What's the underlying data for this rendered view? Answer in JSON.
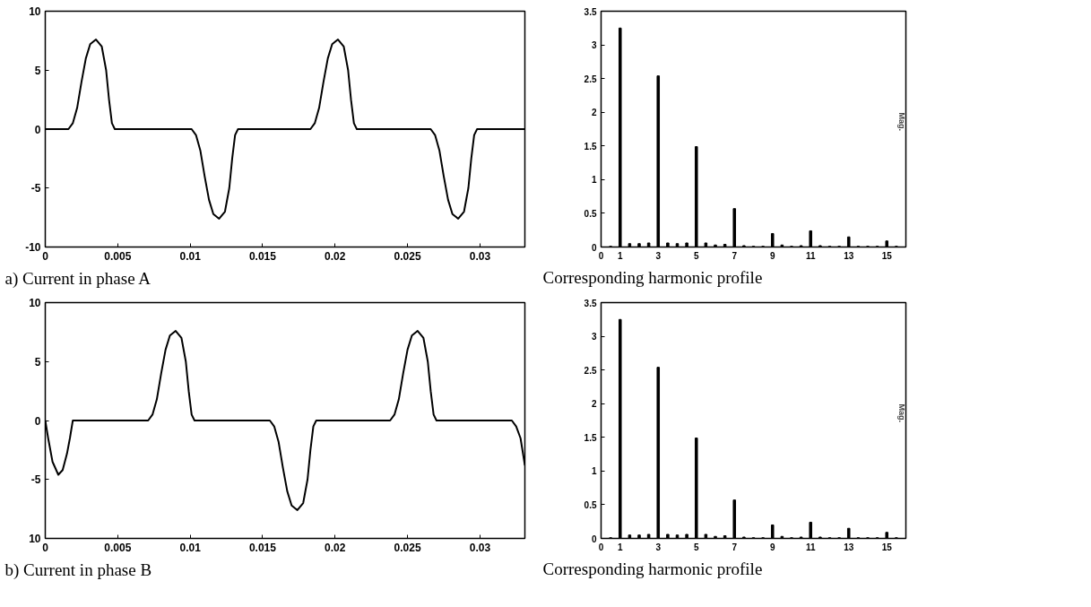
{
  "chart_data": [
    {
      "type": "line",
      "title": "a) Current in phase A",
      "x": [
        0,
        0.0016,
        0.0019,
        0.0022,
        0.0025,
        0.0028,
        0.0031,
        0.0035,
        0.0039,
        0.0042,
        0.0044,
        0.0046,
        0.0048,
        0.0101,
        0.0104,
        0.0107,
        0.011,
        0.0113,
        0.0116,
        0.012,
        0.0124,
        0.0127,
        0.0129,
        0.0131,
        0.0133,
        0.0183,
        0.0186,
        0.0189,
        0.0192,
        0.0195,
        0.0198,
        0.0202,
        0.0206,
        0.0209,
        0.0211,
        0.0213,
        0.0215,
        0.0266,
        0.0269,
        0.0272,
        0.0275,
        0.0278,
        0.0281,
        0.0285,
        0.0289,
        0.0292,
        0.0294,
        0.0296,
        0.0298,
        0.0331
      ],
      "series": [
        {
          "color": "#000000",
          "values": [
            0,
            0,
            0.5,
            1.8,
            4,
            6,
            7.2,
            7.6,
            7,
            5,
            2.5,
            0.5,
            0,
            0,
            -0.5,
            -1.8,
            -4,
            -6,
            -7.2,
            -7.6,
            -7,
            -5,
            -2.5,
            -0.5,
            0,
            0,
            0.5,
            1.8,
            4,
            6,
            7.2,
            7.6,
            7,
            5,
            2.5,
            0.5,
            0,
            0,
            -0.5,
            -1.8,
            -4,
            -6,
            -7.2,
            -7.6,
            -7,
            -5,
            -2.5,
            -0.5,
            0,
            0
          ]
        }
      ],
      "xlim": [
        0,
        0.0331
      ],
      "ylim": [
        -10,
        10
      ],
      "xticks": [
        0,
        0.005,
        0.01,
        0.015,
        0.02,
        0.025,
        0.03
      ],
      "yticks": [
        -10,
        -5,
        0,
        5,
        10
      ],
      "line_style": "solid",
      "marker": "none",
      "grid": false
    },
    {
      "type": "bar",
      "title": "Corresponding harmonic profile",
      "annotations": [
        "Mag."
      ],
      "x": [
        0.5,
        1,
        1.5,
        2,
        2.5,
        3,
        3.5,
        4,
        4.5,
        5,
        5.5,
        6,
        6.5,
        7,
        7.5,
        8,
        8.5,
        9,
        9.5,
        10,
        10.5,
        11,
        11.5,
        12,
        12.5,
        13,
        13.5,
        14,
        14.5,
        15,
        15.5
      ],
      "series": [
        {
          "color": "#000000",
          "values": [
            0.01,
            3.25,
            0.05,
            0.05,
            0.06,
            2.54,
            0.06,
            0.05,
            0.06,
            1.49,
            0.06,
            0.03,
            0.04,
            0.57,
            0.02,
            0.01,
            0.01,
            0.2,
            0.03,
            0.01,
            0.02,
            0.24,
            0.02,
            0.01,
            0.01,
            0.15,
            0.01,
            0.01,
            0.01,
            0.09,
            0.01
          ]
        }
      ],
      "xlim": [
        0,
        16
      ],
      "ylim": [
        0,
        3.5
      ],
      "xticks": [
        0,
        1,
        3,
        5,
        7,
        9,
        11,
        13,
        15
      ],
      "yticks": [
        0,
        0.5,
        1,
        1.5,
        2,
        2.5,
        3,
        3.5
      ],
      "grid": false
    },
    {
      "type": "line",
      "title": "b) Current in phase B",
      "x": [
        0,
        0.0002,
        0.0005,
        0.0009,
        0.0012,
        0.0015,
        0.0017,
        0.0019,
        0.0071,
        0.0074,
        0.0077,
        0.008,
        0.0083,
        0.0086,
        0.009,
        0.0094,
        0.0097,
        0.0099,
        0.0101,
        0.0103,
        0.0155,
        0.0158,
        0.0161,
        0.0164,
        0.0167,
        0.017,
        0.0174,
        0.0178,
        0.0181,
        0.0183,
        0.0185,
        0.0187,
        0.0238,
        0.0241,
        0.0244,
        0.0247,
        0.025,
        0.0253,
        0.0257,
        0.0261,
        0.0264,
        0.0266,
        0.0268,
        0.027,
        0.0322,
        0.0325,
        0.0328,
        0.0331
      ],
      "series": [
        {
          "color": "#000000",
          "values": [
            0,
            -1.5,
            -3.5,
            -4.6,
            -4.2,
            -2.8,
            -1.5,
            0,
            0,
            0.5,
            1.8,
            4,
            6,
            7.2,
            7.6,
            7,
            5,
            2.5,
            0.5,
            0,
            0,
            -0.5,
            -1.8,
            -4,
            -6,
            -7.2,
            -7.6,
            -7,
            -5,
            -2.5,
            -0.5,
            0,
            0,
            0.5,
            1.8,
            4,
            6,
            7.2,
            7.6,
            7,
            5,
            2.5,
            0.5,
            0,
            0,
            -0.5,
            -1.5,
            -3.8
          ]
        }
      ],
      "xlim": [
        0,
        0.0331
      ],
      "ylim": [
        -10,
        10
      ],
      "xticks": [
        0,
        0.005,
        0.01,
        0.015,
        0.02,
        0.025,
        0.03
      ],
      "yticks": [
        {
          "value": -10,
          "label": "10"
        },
        -5,
        0,
        5,
        10
      ],
      "line_style": "solid",
      "marker": "none",
      "grid": false
    },
    {
      "type": "bar",
      "title": "Corresponding harmonic profile",
      "annotations": [
        "Mag."
      ],
      "x": [
        0.5,
        1,
        1.5,
        2,
        2.5,
        3,
        3.5,
        4,
        4.5,
        5,
        5.5,
        6,
        6.5,
        7,
        7.5,
        8,
        8.5,
        9,
        9.5,
        10,
        10.5,
        11,
        11.5,
        12,
        12.5,
        13,
        13.5,
        14,
        14.5,
        15,
        15.5
      ],
      "series": [
        {
          "color": "#000000",
          "values": [
            0.01,
            3.25,
            0.05,
            0.05,
            0.06,
            2.54,
            0.06,
            0.05,
            0.06,
            1.49,
            0.06,
            0.03,
            0.04,
            0.57,
            0.02,
            0.01,
            0.01,
            0.2,
            0.03,
            0.01,
            0.02,
            0.24,
            0.02,
            0.01,
            0.01,
            0.15,
            0.01,
            0.01,
            0.01,
            0.09,
            0.01
          ]
        }
      ],
      "xlim": [
        0,
        16
      ],
      "ylim": [
        0,
        3.5
      ],
      "xticks": [
        0,
        1,
        3,
        5,
        7,
        9,
        11,
        13,
        15
      ],
      "yticks": [
        0,
        0.5,
        1,
        1.5,
        2,
        2.5,
        3,
        3.5
      ],
      "grid": false
    }
  ]
}
